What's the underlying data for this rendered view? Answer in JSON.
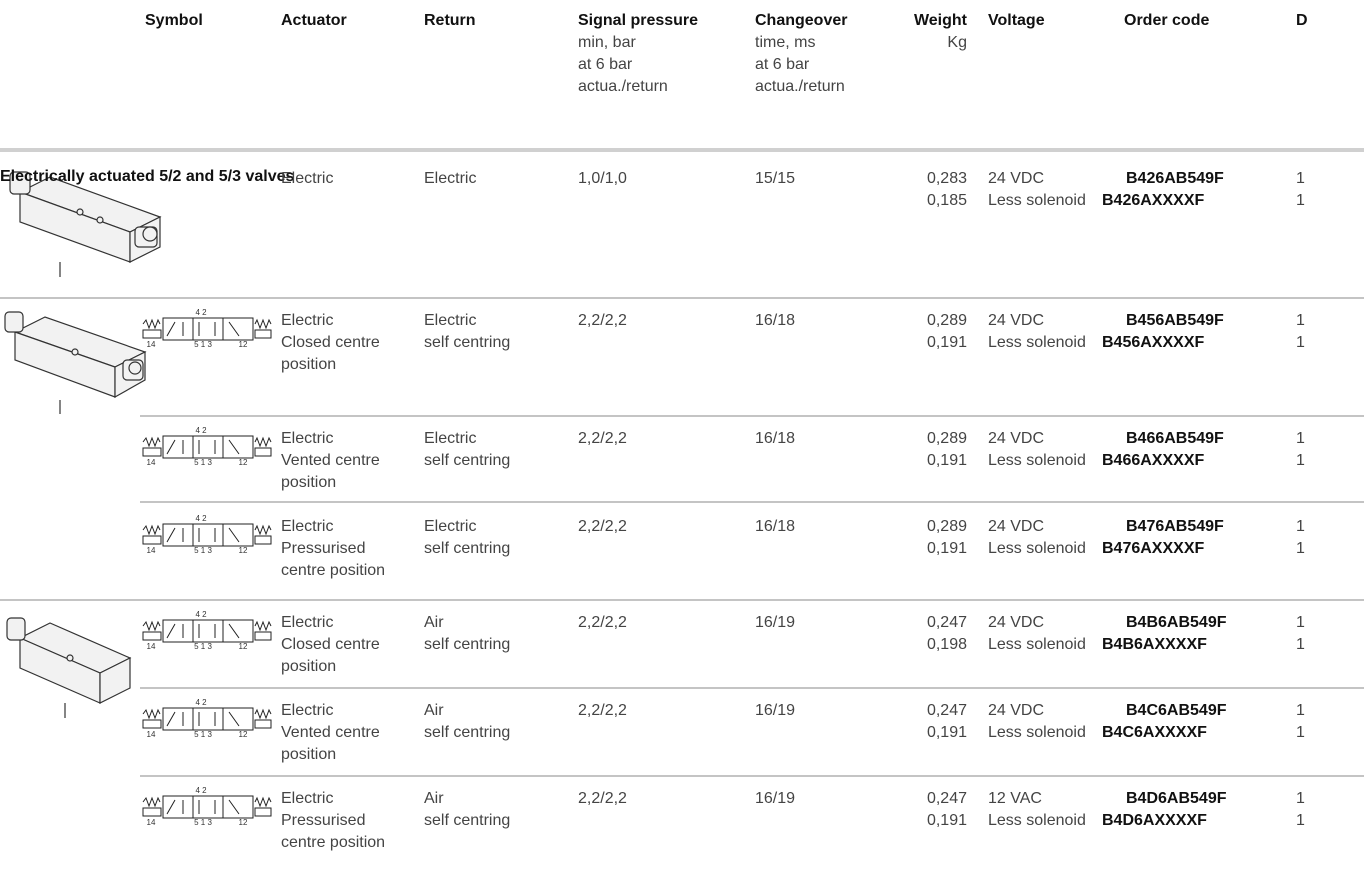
{
  "header": {
    "columns": [
      {
        "title": "Symbol",
        "sub": []
      },
      {
        "title": "Actuator",
        "sub": []
      },
      {
        "title": "Return",
        "sub": []
      },
      {
        "title": "Signal pressure",
        "sub": [
          "min, bar",
          "at 6 bar",
          "actua./return"
        ]
      },
      {
        "title": "Changeover",
        "sub": [
          "time, ms",
          "at 6 bar",
          "actua./return"
        ]
      },
      {
        "title": "Weight",
        "sub": [
          "Kg"
        ]
      },
      {
        "title": "Voltage",
        "sub": []
      },
      {
        "title": "Order code",
        "sub": []
      },
      {
        "title": "D",
        "sub": []
      }
    ]
  },
  "section_title": "Electrically actuated 5/2 and 5/3 valves",
  "symbol_labels": {
    "top": "4 2",
    "left": "14",
    "bottom": "5 1 3",
    "right": "12"
  },
  "rows": [
    {
      "actuator": [
        "Electric"
      ],
      "return": [
        "Electric"
      ],
      "signal": "1,0/1,0",
      "changeover": "15/15",
      "weight": [
        "0,283",
        "0,185"
      ],
      "voltage": [
        "24 VDC",
        "Less solenoid"
      ],
      "code": [
        "B426AB549F",
        "B426AXXXXF"
      ],
      "d": [
        1,
        1
      ]
    },
    {
      "actuator": [
        "Electric",
        "Closed centre",
        "position"
      ],
      "return": [
        "Electric",
        "self centring"
      ],
      "signal": "2,2/2,2",
      "changeover": "16/18",
      "weight": [
        "0,289",
        "0,191"
      ],
      "voltage": [
        "24 VDC",
        "Less solenoid"
      ],
      "code": [
        "B456AB549F",
        "B456AXXXXF"
      ],
      "d": [
        1,
        1
      ]
    },
    {
      "actuator": [
        "Electric",
        "Vented centre",
        "position"
      ],
      "return": [
        "Electric",
        "self centring"
      ],
      "signal": "2,2/2,2",
      "changeover": "16/18",
      "weight": [
        "0,289",
        "0,191"
      ],
      "voltage": [
        "24 VDC",
        "Less solenoid"
      ],
      "code": [
        "B466AB549F",
        "B466AXXXXF"
      ],
      "d": [
        1,
        1
      ]
    },
    {
      "actuator": [
        "Electric",
        "Pressurised",
        "centre position"
      ],
      "return": [
        "Electric",
        "self centring"
      ],
      "signal": "2,2/2,2",
      "changeover": "16/18",
      "weight": [
        "0,289",
        "0,191"
      ],
      "voltage": [
        "24 VDC",
        "Less solenoid"
      ],
      "code": [
        "B476AB549F",
        "B476AXXXXF"
      ],
      "d": [
        1,
        1
      ]
    },
    {
      "actuator": [
        "Electric",
        "Closed centre",
        "position"
      ],
      "return": [
        "Air",
        "self centring"
      ],
      "signal": "2,2/2,2",
      "changeover": "16/19",
      "weight": [
        "0,247",
        "0,198"
      ],
      "voltage": [
        "24 VDC",
        "Less solenoid"
      ],
      "code": [
        "B4B6AB549F",
        "B4B6AXXXXF"
      ],
      "d": [
        1,
        1
      ]
    },
    {
      "actuator": [
        "Electric",
        "Vented centre",
        "position"
      ],
      "return": [
        "Air",
        "self centring"
      ],
      "signal": "2,2/2,2",
      "changeover": "16/19",
      "weight": [
        "0,247",
        "0,191"
      ],
      "voltage": [
        "24 VDC",
        "Less solenoid"
      ],
      "code": [
        "B4C6AB549F",
        "B4C6AXXXXF"
      ],
      "d": [
        1,
        1
      ]
    },
    {
      "actuator": [
        "Electric",
        "Pressurised",
        "centre position"
      ],
      "return": [
        "Air",
        "self centring"
      ],
      "signal": "2,2/2,2",
      "changeover": "16/19",
      "weight": [
        "0,247",
        "0,191"
      ],
      "voltage": [
        "12 VAC",
        "Less solenoid"
      ],
      "code": [
        "B4D6AB549F",
        "B4D6AXXXXF"
      ],
      "d": [
        1,
        1
      ]
    }
  ]
}
